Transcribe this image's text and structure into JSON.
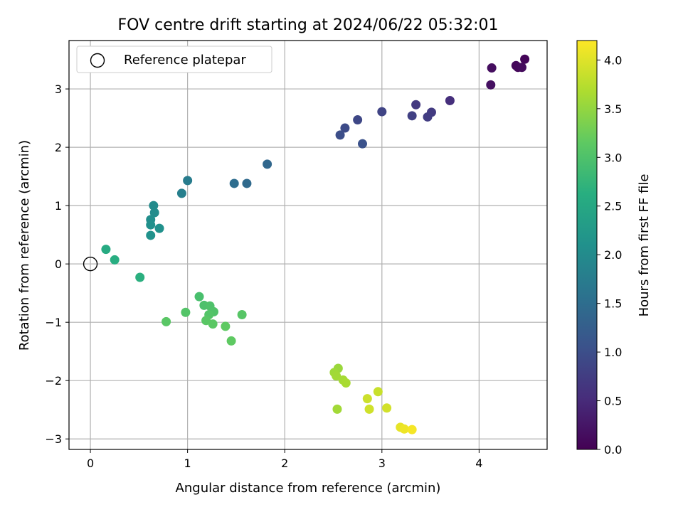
{
  "chart_data": {
    "type": "scatter",
    "title": "FOV centre drift starting at 2024/06/22 05:32:01",
    "xlabel": "Angular distance from reference (arcmin)",
    "ylabel": "Rotation from reference (arcmin)",
    "xlim": [
      -0.22,
      4.7
    ],
    "ylim": [
      -3.18,
      3.83
    ],
    "xticks": [
      0,
      1,
      2,
      3,
      4
    ],
    "yticks": [
      -3,
      -2,
      -1,
      0,
      1,
      2,
      3
    ],
    "xtick_labels": [
      "0",
      "1",
      "2",
      "3",
      "4"
    ],
    "ytick_labels": [
      "−3",
      "−2",
      "−1",
      "0",
      "1",
      "2",
      "3"
    ],
    "grid": true,
    "legend": {
      "placement": "top-left",
      "entries": [
        "Reference platepar"
      ]
    },
    "reference_point": {
      "x": 0,
      "y": 0,
      "marker": "open-circle"
    },
    "colorbar": {
      "label": "Hours from first FF file",
      "colormap": "viridis",
      "range": [
        0,
        4.2
      ],
      "ticks": [
        0,
        0.5,
        1,
        1.5,
        2,
        2.5,
        3,
        3.5,
        4
      ],
      "tick_labels": [
        "0.0",
        "0.5",
        "1.0",
        "1.5",
        "2.0",
        "2.5",
        "3.0",
        "3.5",
        "4.0"
      ]
    },
    "points": [
      {
        "x": 4.47,
        "y": 3.51,
        "c": 0.05
      },
      {
        "x": 4.38,
        "y": 3.4,
        "c": 0.08
      },
      {
        "x": 4.4,
        "y": 3.37,
        "c": 0.1
      },
      {
        "x": 4.44,
        "y": 3.37,
        "c": 0.12
      },
      {
        "x": 4.13,
        "y": 3.36,
        "c": 0.15
      },
      {
        "x": 4.12,
        "y": 3.07,
        "c": 0.18
      },
      {
        "x": 3.7,
        "y": 2.8,
        "c": 0.55
      },
      {
        "x": 3.35,
        "y": 2.73,
        "c": 0.7
      },
      {
        "x": 3.51,
        "y": 2.6,
        "c": 0.72
      },
      {
        "x": 3.47,
        "y": 2.52,
        "c": 0.75
      },
      {
        "x": 3.31,
        "y": 2.54,
        "c": 0.8
      },
      {
        "x": 3.0,
        "y": 2.61,
        "c": 0.85
      },
      {
        "x": 2.75,
        "y": 2.47,
        "c": 0.9
      },
      {
        "x": 2.62,
        "y": 2.33,
        "c": 0.95
      },
      {
        "x": 2.57,
        "y": 2.21,
        "c": 1.0
      },
      {
        "x": 2.8,
        "y": 2.06,
        "c": 1.05
      },
      {
        "x": 1.82,
        "y": 1.71,
        "c": 1.4
      },
      {
        "x": 1.61,
        "y": 1.38,
        "c": 1.45
      },
      {
        "x": 1.48,
        "y": 1.38,
        "c": 1.5
      },
      {
        "x": 1.0,
        "y": 1.43,
        "c": 1.75
      },
      {
        "x": 0.94,
        "y": 1.21,
        "c": 1.8
      },
      {
        "x": 0.65,
        "y": 1.0,
        "c": 2.0
      },
      {
        "x": 0.66,
        "y": 0.88,
        "c": 2.02
      },
      {
        "x": 0.62,
        "y": 0.76,
        "c": 2.05
      },
      {
        "x": 0.62,
        "y": 0.67,
        "c": 2.08
      },
      {
        "x": 0.71,
        "y": 0.61,
        "c": 2.1
      },
      {
        "x": 0.62,
        "y": 0.49,
        "c": 2.12
      },
      {
        "x": 0.16,
        "y": 0.25,
        "c": 2.55
      },
      {
        "x": 0.25,
        "y": 0.07,
        "c": 2.6
      },
      {
        "x": 0.51,
        "y": -0.23,
        "c": 2.65
      },
      {
        "x": 1.12,
        "y": -0.56,
        "c": 2.95
      },
      {
        "x": 1.17,
        "y": -0.71,
        "c": 2.98
      },
      {
        "x": 1.23,
        "y": -0.72,
        "c": 3.0
      },
      {
        "x": 1.27,
        "y": -0.82,
        "c": 3.02
      },
      {
        "x": 1.22,
        "y": -0.87,
        "c": 3.05
      },
      {
        "x": 0.98,
        "y": -0.83,
        "c": 3.05
      },
      {
        "x": 1.56,
        "y": -0.87,
        "c": 3.08
      },
      {
        "x": 1.19,
        "y": -0.97,
        "c": 3.1
      },
      {
        "x": 1.26,
        "y": -1.03,
        "c": 3.12
      },
      {
        "x": 0.78,
        "y": -0.99,
        "c": 3.1
      },
      {
        "x": 1.39,
        "y": -1.07,
        "c": 3.15
      },
      {
        "x": 1.45,
        "y": -1.32,
        "c": 3.15
      },
      {
        "x": 2.55,
        "y": -1.79,
        "c": 3.55
      },
      {
        "x": 2.51,
        "y": -1.86,
        "c": 3.58
      },
      {
        "x": 2.53,
        "y": -1.92,
        "c": 3.6
      },
      {
        "x": 2.6,
        "y": -1.99,
        "c": 3.62
      },
      {
        "x": 2.63,
        "y": -2.04,
        "c": 3.65
      },
      {
        "x": 2.54,
        "y": -2.49,
        "c": 3.6
      },
      {
        "x": 2.96,
        "y": -2.19,
        "c": 3.85
      },
      {
        "x": 2.85,
        "y": -2.31,
        "c": 3.88
      },
      {
        "x": 2.87,
        "y": -2.49,
        "c": 3.9
      },
      {
        "x": 3.05,
        "y": -2.47,
        "c": 3.92
      },
      {
        "x": 3.19,
        "y": -2.8,
        "c": 4.05
      },
      {
        "x": 3.23,
        "y": -2.83,
        "c": 4.1
      },
      {
        "x": 3.31,
        "y": -2.84,
        "c": 4.15
      }
    ]
  }
}
